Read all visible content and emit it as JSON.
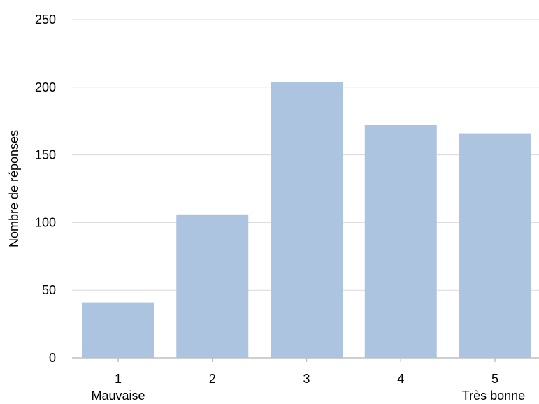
{
  "chart_data": {
    "type": "bar",
    "title": "",
    "xlabel": "",
    "ylabel": "Nombre de réponses",
    "categories": [
      "1",
      "2",
      "3",
      "4",
      "5"
    ],
    "category_sublabels": [
      "Mauvaise",
      "",
      "",
      "",
      "Très bonne"
    ],
    "values": [
      41,
      106,
      204,
      172,
      166
    ],
    "ylim": [
      0,
      250
    ],
    "yticks": [
      0,
      50,
      100,
      150,
      200,
      250
    ],
    "grid": true,
    "legend": "none",
    "colors": {
      "bar": "#adc4e1",
      "grid": "#d9d9d9",
      "axis": "#bfbfbf"
    }
  }
}
